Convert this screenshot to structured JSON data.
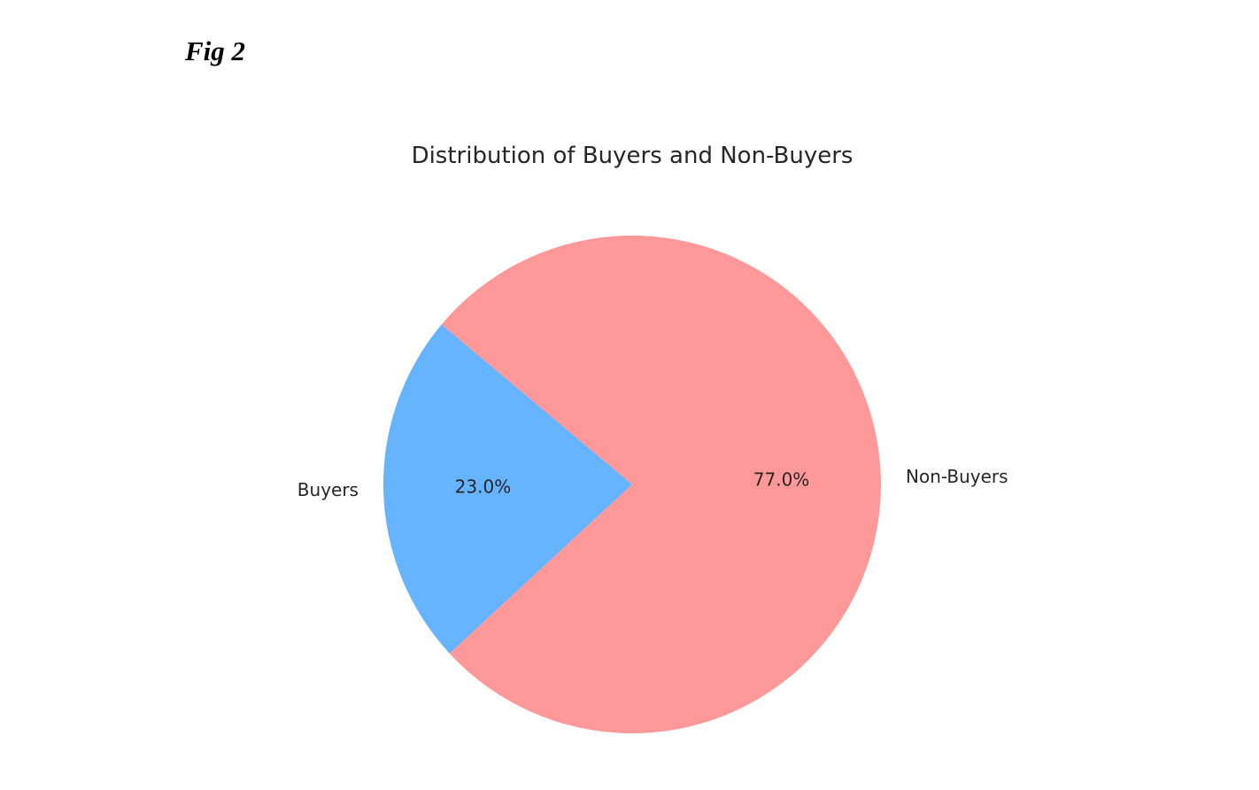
{
  "figure": {
    "label": "Fig 2"
  },
  "chart_data": {
    "type": "pie",
    "title": "Distribution of Buyers and Non-Buyers",
    "categories": [
      "Buyers",
      "Non-Buyers"
    ],
    "values": [
      23.0,
      77.0
    ],
    "percent_labels": [
      "23.0%",
      "77.0%"
    ],
    "colors": [
      "#66b3ff",
      "#ff9999"
    ],
    "start_angle_deg": 140,
    "legend": "none"
  }
}
